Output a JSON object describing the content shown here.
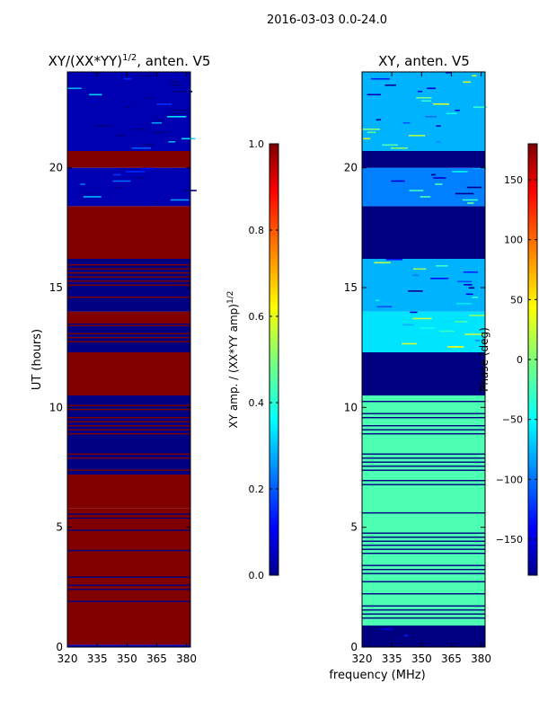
{
  "suptitle": "2016-03-03 0.0-24.0",
  "chart_data": [
    {
      "type": "heatmap",
      "title": "XY/(XX*YY)",
      "title_superscript": "1/2",
      "title_suffix": ", anten. V5",
      "xlabel": "",
      "ylabel": "UT (hours)",
      "xlim": [
        320,
        382
      ],
      "ylim": [
        0,
        24
      ],
      "xticks": [
        320,
        335,
        350,
        365,
        380
      ],
      "xtick_labels": [
        "320",
        "335",
        "350",
        "365",
        "380"
      ],
      "yticks": [
        0,
        5,
        10,
        15,
        20
      ],
      "ytick_labels": [
        "0",
        "5",
        "10",
        "15",
        "20"
      ],
      "colorbar": {
        "label": "XY amp. / (XX*YY amp)",
        "label_superscript": "1/2",
        "range": [
          0.0,
          1.0
        ],
        "ticks": [
          0.0,
          0.2,
          0.4,
          0.6,
          0.8,
          1.0
        ],
        "tick_labels": [
          "0.0",
          "0.2",
          "0.4",
          "0.6",
          "0.8",
          "1.0"
        ],
        "colormap": "jet"
      },
      "bands": [
        {
          "y0": 0.0,
          "y1": 0.1,
          "value": 0.05
        },
        {
          "y0": 0.1,
          "y1": 0.9,
          "value": 1.0
        },
        {
          "y0": 0.9,
          "y1": 3.0,
          "value": 1.0,
          "striped": true,
          "stripe_value": 0.0
        },
        {
          "y0": 3.0,
          "y1": 5.8,
          "value": 1.0,
          "striped": true,
          "stripe_value": 0.0
        },
        {
          "y0": 5.8,
          "y1": 7.2,
          "value": 1.0
        },
        {
          "y0": 7.2,
          "y1": 10.5,
          "value": 0.0,
          "striped": true,
          "stripe_value": 1.0
        },
        {
          "y0": 10.5,
          "y1": 12.3,
          "value": 1.0
        },
        {
          "y0": 12.3,
          "y1": 13.5,
          "value": 0.0,
          "striped": true,
          "stripe_value": 1.0
        },
        {
          "y0": 13.5,
          "y1": 14.0,
          "value": 1.0
        },
        {
          "y0": 14.0,
          "y1": 16.2,
          "value": 0.0,
          "striped": true,
          "stripe_value": 1.0
        },
        {
          "y0": 16.2,
          "y1": 18.4,
          "value": 1.0
        },
        {
          "y0": 18.4,
          "y1": 20.0,
          "value": 0.05,
          "noisy": true
        },
        {
          "y0": 20.0,
          "y1": 20.7,
          "value": 1.0
        },
        {
          "y0": 20.7,
          "y1": 24.0,
          "value": 0.05,
          "noisy": true
        }
      ]
    },
    {
      "type": "heatmap",
      "title": "XY, anten. V5",
      "xlabel": "frequency (MHz)",
      "ylabel": "",
      "xlim": [
        320,
        382
      ],
      "ylim": [
        0,
        24
      ],
      "xticks": [
        320,
        335,
        350,
        365,
        380
      ],
      "xtick_labels": [
        "320",
        "335",
        "350",
        "365",
        "380"
      ],
      "yticks": [
        0,
        5,
        10,
        15,
        20
      ],
      "ytick_labels": [
        "0",
        "5",
        "10",
        "15",
        "20"
      ],
      "colorbar": {
        "label": "Phase (deg)",
        "range": [
          -180,
          180
        ],
        "ticks": [
          -150,
          -100,
          -50,
          0,
          50,
          100,
          150
        ],
        "tick_labels": [
          "−150",
          "−100",
          "−50",
          "0",
          "50",
          "100",
          "150"
        ],
        "colormap": "jet"
      },
      "bands": [
        {
          "y0": 0.0,
          "y1": 0.9,
          "value": 0.0,
          "noisy": true
        },
        {
          "y0": 0.9,
          "y1": 7.2,
          "value": 0.45,
          "striped": true,
          "stripe_value": 0.0
        },
        {
          "y0": 7.2,
          "y1": 10.5,
          "value": 0.45,
          "striped": true,
          "stripe_value": 0.0
        },
        {
          "y0": 10.5,
          "y1": 12.3,
          "value": 0.0
        },
        {
          "y0": 12.3,
          "y1": 14.0,
          "value": 0.35,
          "noisy": true
        },
        {
          "y0": 14.0,
          "y1": 16.2,
          "value": 0.3,
          "noisy": true
        },
        {
          "y0": 16.2,
          "y1": 18.4,
          "value": 0.0
        },
        {
          "y0": 18.4,
          "y1": 20.0,
          "value": 0.25,
          "noisy": true
        },
        {
          "y0": 20.0,
          "y1": 20.7,
          "value": 0.0
        },
        {
          "y0": 20.7,
          "y1": 24.0,
          "value": 0.3,
          "noisy": true
        }
      ]
    }
  ]
}
